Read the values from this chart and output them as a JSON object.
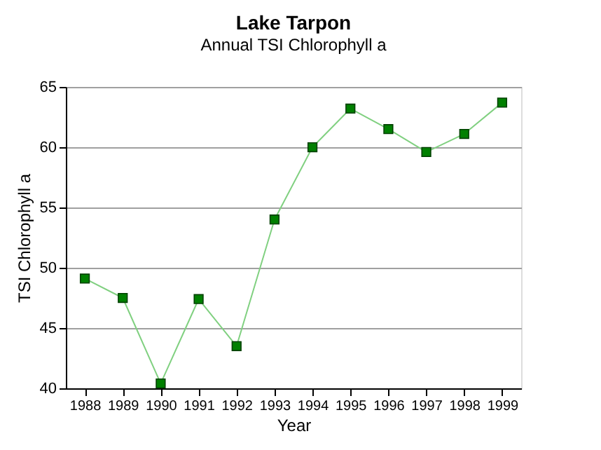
{
  "chart_data": {
    "type": "line",
    "title": "Lake Tarpon",
    "subtitle": "Annual TSI Chlorophyll a",
    "xlabel": "Year",
    "ylabel": "TSI Chlorophyll a",
    "categories": [
      "1988",
      "1989",
      "1990",
      "1991",
      "1992",
      "1993",
      "1994",
      "1995",
      "1996",
      "1997",
      "1998",
      "1999"
    ],
    "series": [
      {
        "color": "#008000",
        "values": [
          49.1,
          47.5,
          40.4,
          47.4,
          43.5,
          54.0,
          60.0,
          63.2,
          61.5,
          59.6,
          61.1,
          63.7
        ]
      }
    ],
    "ylim": [
      40,
      65
    ],
    "yticks": [
      40,
      45,
      50,
      55,
      60,
      65
    ],
    "grid": "y",
    "marker": "square",
    "line_style": "solid"
  }
}
